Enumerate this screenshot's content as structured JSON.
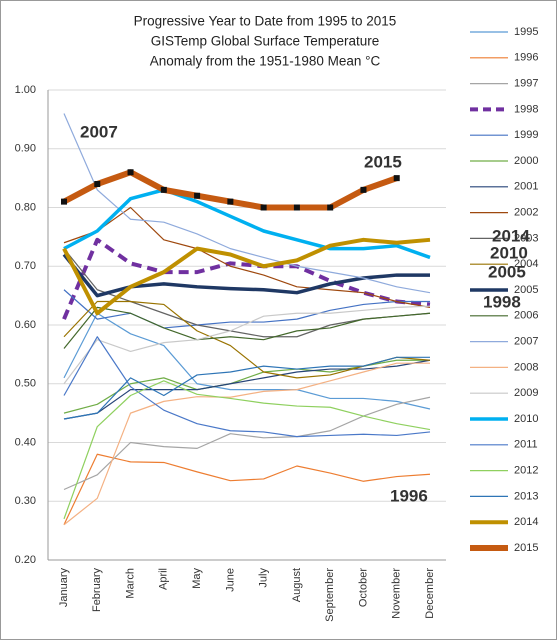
{
  "chart_data": {
    "type": "line",
    "title": [
      "Progressive Year to Date from 1995 to 2015",
      "GISTemp Global Surface Temperature",
      "Anomaly from the 1951-1980 Mean °C"
    ],
    "categories": [
      "January",
      "February",
      "March",
      "April",
      "May",
      "June",
      "July",
      "August",
      "September",
      "October",
      "November",
      "December"
    ],
    "ylim": [
      0.2,
      1.0
    ],
    "yticks": [
      {
        "value": 0.2,
        "label": "0.20"
      },
      {
        "value": 0.3,
        "label": "0.30"
      },
      {
        "value": 0.4,
        "label": "0.40"
      },
      {
        "value": 0.5,
        "label": "0.50"
      },
      {
        "value": 0.6,
        "label": "0.60"
      },
      {
        "value": 0.7,
        "label": "0.70"
      },
      {
        "value": 0.8,
        "label": "0.80"
      },
      {
        "value": 0.9,
        "label": "0.90"
      },
      {
        "value": 1.0,
        "label": "1.00"
      }
    ],
    "grid": true,
    "legend": "right",
    "series": [
      {
        "name": "1995",
        "color": "#5b9bd5",
        "width": 1.2,
        "values": [
          0.51,
          0.62,
          0.585,
          0.565,
          0.5,
          0.49,
          0.49,
          0.49,
          0.475,
          0.475,
          0.47,
          0.457
        ]
      },
      {
        "name": "1996",
        "color": "#ed7d31",
        "width": 1.2,
        "values": [
          0.26,
          0.38,
          0.367,
          0.366,
          0.35,
          0.335,
          0.338,
          0.36,
          0.348,
          0.334,
          0.342,
          0.346
        ]
      },
      {
        "name": "1997",
        "color": "#a5a5a5",
        "width": 1.2,
        "values": [
          0.32,
          0.345,
          0.4,
          0.393,
          0.39,
          0.415,
          0.408,
          0.41,
          0.42,
          0.445,
          0.465,
          0.477
        ]
      },
      {
        "name": "1998",
        "color": "#7030a0",
        "width": 4,
        "dash": true,
        "values": [
          0.61,
          0.745,
          0.705,
          0.69,
          0.69,
          0.705,
          0.7,
          0.7,
          0.675,
          0.655,
          0.64,
          0.635
        ]
      },
      {
        "name": "1999",
        "color": "#4472c4",
        "width": 1.2,
        "values": [
          0.66,
          0.61,
          0.62,
          0.595,
          0.6,
          0.605,
          0.605,
          0.61,
          0.625,
          0.635,
          0.64,
          0.64
        ]
      },
      {
        "name": "2000",
        "color": "#70ad47",
        "width": 1.2,
        "values": [
          0.45,
          0.465,
          0.5,
          0.51,
          0.49,
          0.5,
          0.52,
          0.525,
          0.52,
          0.53,
          0.54,
          0.54
        ]
      },
      {
        "name": "2001",
        "color": "#264478",
        "width": 1.2,
        "values": [
          0.44,
          0.45,
          0.49,
          0.49,
          0.49,
          0.5,
          0.51,
          0.52,
          0.525,
          0.525,
          0.53,
          0.54
        ]
      },
      {
        "name": "2002",
        "color": "#9e480e",
        "width": 1.2,
        "values": [
          0.74,
          0.76,
          0.8,
          0.745,
          0.73,
          0.7,
          0.685,
          0.665,
          0.66,
          0.655,
          0.64,
          0.63
        ]
      },
      {
        "name": "2003",
        "color": "#636363",
        "width": 1.2,
        "values": [
          0.73,
          0.66,
          0.64,
          0.62,
          0.6,
          0.59,
          0.58,
          0.58,
          0.6,
          0.61,
          0.615,
          0.62
        ]
      },
      {
        "name": "2004",
        "color": "#997300",
        "width": 1.2,
        "values": [
          0.58,
          0.64,
          0.64,
          0.635,
          0.59,
          0.565,
          0.52,
          0.51,
          0.515,
          0.53,
          0.545,
          0.54
        ]
      },
      {
        "name": "2005",
        "color": "#1f3864",
        "width": 3.5,
        "values": [
          0.72,
          0.65,
          0.665,
          0.67,
          0.665,
          0.662,
          0.66,
          0.655,
          0.67,
          0.68,
          0.685,
          0.685
        ]
      },
      {
        "name": "2006",
        "color": "#43682b",
        "width": 1.2,
        "values": [
          0.56,
          0.63,
          0.62,
          0.595,
          0.575,
          0.58,
          0.575,
          0.59,
          0.595,
          0.61,
          0.615,
          0.62
        ]
      },
      {
        "name": "2007",
        "color": "#8faadc",
        "width": 1.2,
        "values": [
          0.96,
          0.83,
          0.78,
          0.775,
          0.755,
          0.73,
          0.715,
          0.7,
          0.69,
          0.68,
          0.665,
          0.655
        ]
      },
      {
        "name": "2008",
        "color": "#f4b183",
        "width": 1.2,
        "values": [
          0.26,
          0.305,
          0.45,
          0.47,
          0.478,
          0.477,
          0.487,
          0.49,
          0.505,
          0.52,
          0.535,
          0.535
        ]
      },
      {
        "name": "2009",
        "color": "#c9c9c9",
        "width": 1.2,
        "values": [
          0.5,
          0.575,
          0.555,
          0.57,
          0.575,
          0.59,
          0.615,
          0.62,
          0.62,
          0.625,
          0.63,
          0.632
        ]
      },
      {
        "name": "2010",
        "color": "#00b0f0",
        "width": 3.5,
        "values": [
          0.73,
          0.76,
          0.815,
          0.83,
          0.81,
          0.785,
          0.76,
          0.745,
          0.73,
          0.73,
          0.735,
          0.715
        ]
      },
      {
        "name": "2011",
        "color": "#4a78c8",
        "width": 1.2,
        "values": [
          0.48,
          0.58,
          0.495,
          0.455,
          0.432,
          0.42,
          0.418,
          0.41,
          0.412,
          0.414,
          0.412,
          0.418
        ]
      },
      {
        "name": "2012",
        "color": "#8fd05f",
        "width": 1.2,
        "values": [
          0.27,
          0.427,
          0.48,
          0.505,
          0.482,
          0.475,
          0.467,
          0.462,
          0.46,
          0.445,
          0.432,
          0.422
        ]
      },
      {
        "name": "2013",
        "color": "#2e75b6",
        "width": 1.2,
        "values": [
          0.44,
          0.45,
          0.51,
          0.48,
          0.515,
          0.52,
          0.53,
          0.525,
          0.53,
          0.53,
          0.545,
          0.545
        ]
      },
      {
        "name": "2014",
        "color": "#bf9000",
        "width": 4,
        "values": [
          0.73,
          0.62,
          0.665,
          0.69,
          0.73,
          0.72,
          0.7,
          0.71,
          0.735,
          0.745,
          0.74,
          0.745
        ]
      },
      {
        "name": "2015",
        "color": "#c55a11",
        "width": 6,
        "markers": true,
        "values": [
          0.81,
          0.84,
          0.86,
          0.83,
          0.82,
          0.81,
          0.8,
          0.8,
          0.8,
          0.83,
          0.85,
          null
        ]
      }
    ],
    "annotations": [
      {
        "text": "2007",
        "color": "#8faadc"
      },
      {
        "text": "2015",
        "color": "#c55a11"
      },
      {
        "text": "2014",
        "color": "#bf9000"
      },
      {
        "text": "2010",
        "color": "#00b0f0"
      },
      {
        "text": "2005",
        "color": "#1f3864"
      },
      {
        "text": "1998",
        "color": "#7030a0"
      },
      {
        "text": "1996",
        "color": "#ed7d31"
      }
    ]
  }
}
